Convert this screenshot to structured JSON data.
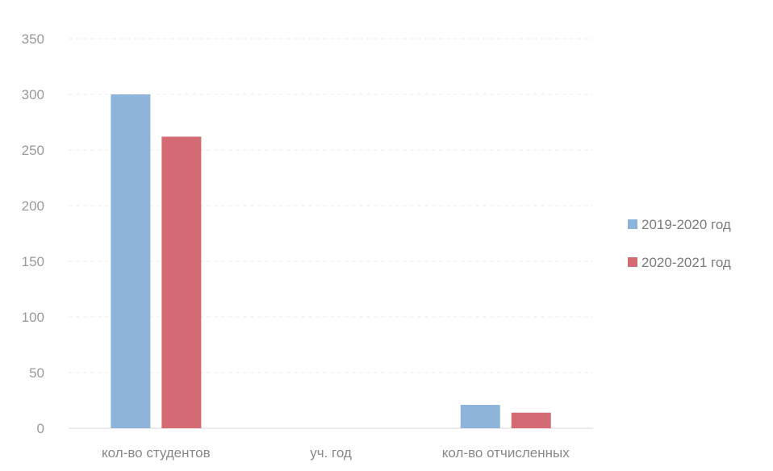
{
  "chart_data": {
    "type": "bar",
    "categories": [
      "кол-во студентов",
      "уч. год",
      "кол-во отчисленных"
    ],
    "series": [
      {
        "name": "2019-2020 год",
        "color": "#8fb4d9",
        "values": [
          300,
          0,
          21
        ]
      },
      {
        "name": "2020-2021 год",
        "color": "#d46a74",
        "values": [
          262,
          0,
          14
        ]
      }
    ],
    "ylim": [
      0,
      350
    ],
    "yticks": [
      "0",
      "50",
      "100",
      "150",
      "200",
      "250",
      "300",
      "350"
    ],
    "grid": true,
    "legend_position": "right"
  }
}
